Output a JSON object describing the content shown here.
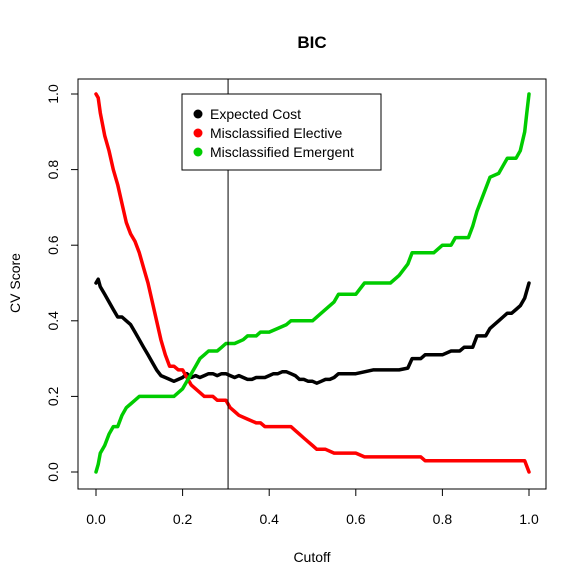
{
  "chart_data": {
    "type": "line",
    "title": "BIC",
    "xlabel": "Cutoff",
    "ylabel": "CV Score",
    "xlim": [
      0,
      1
    ],
    "ylim": [
      0,
      1
    ],
    "x_ticks": [
      "0.0",
      "0.2",
      "0.4",
      "0.6",
      "0.8",
      "1.0"
    ],
    "y_ticks": [
      "0.0",
      "0.2",
      "0.4",
      "0.6",
      "0.8",
      "1.0"
    ],
    "grid": false,
    "legend_position": "top-center",
    "vline": 0.305,
    "series": [
      {
        "name": "Expected Cost",
        "color": "#000000",
        "points": [
          [
            0.0,
            0.5
          ],
          [
            0.005,
            0.51
          ],
          [
            0.01,
            0.49
          ],
          [
            0.02,
            0.47
          ],
          [
            0.03,
            0.45
          ],
          [
            0.04,
            0.43
          ],
          [
            0.05,
            0.41
          ],
          [
            0.06,
            0.41
          ],
          [
            0.07,
            0.4
          ],
          [
            0.08,
            0.39
          ],
          [
            0.09,
            0.37
          ],
          [
            0.1,
            0.35
          ],
          [
            0.11,
            0.33
          ],
          [
            0.12,
            0.31
          ],
          [
            0.13,
            0.29
          ],
          [
            0.14,
            0.27
          ],
          [
            0.15,
            0.255
          ],
          [
            0.16,
            0.25
          ],
          [
            0.17,
            0.245
          ],
          [
            0.18,
            0.24
          ],
          [
            0.19,
            0.245
          ],
          [
            0.2,
            0.25
          ],
          [
            0.21,
            0.26
          ],
          [
            0.22,
            0.25
          ],
          [
            0.23,
            0.255
          ],
          [
            0.24,
            0.25
          ],
          [
            0.25,
            0.255
          ],
          [
            0.26,
            0.26
          ],
          [
            0.27,
            0.26
          ],
          [
            0.28,
            0.255
          ],
          [
            0.29,
            0.26
          ],
          [
            0.3,
            0.26
          ],
          [
            0.31,
            0.255
          ],
          [
            0.32,
            0.25
          ],
          [
            0.33,
            0.255
          ],
          [
            0.34,
            0.25
          ],
          [
            0.35,
            0.245
          ],
          [
            0.36,
            0.245
          ],
          [
            0.37,
            0.25
          ],
          [
            0.38,
            0.25
          ],
          [
            0.39,
            0.25
          ],
          [
            0.4,
            0.255
          ],
          [
            0.41,
            0.26
          ],
          [
            0.42,
            0.26
          ],
          [
            0.43,
            0.265
          ],
          [
            0.44,
            0.265
          ],
          [
            0.45,
            0.26
          ],
          [
            0.46,
            0.255
          ],
          [
            0.47,
            0.245
          ],
          [
            0.48,
            0.245
          ],
          [
            0.49,
            0.24
          ],
          [
            0.5,
            0.24
          ],
          [
            0.51,
            0.235
          ],
          [
            0.52,
            0.24
          ],
          [
            0.53,
            0.245
          ],
          [
            0.54,
            0.245
          ],
          [
            0.55,
            0.25
          ],
          [
            0.56,
            0.26
          ],
          [
            0.57,
            0.26
          ],
          [
            0.58,
            0.26
          ],
          [
            0.6,
            0.26
          ],
          [
            0.62,
            0.265
          ],
          [
            0.64,
            0.27
          ],
          [
            0.66,
            0.27
          ],
          [
            0.68,
            0.27
          ],
          [
            0.7,
            0.27
          ],
          [
            0.72,
            0.275
          ],
          [
            0.73,
            0.3
          ],
          [
            0.75,
            0.3
          ],
          [
            0.76,
            0.31
          ],
          [
            0.78,
            0.31
          ],
          [
            0.8,
            0.31
          ],
          [
            0.82,
            0.32
          ],
          [
            0.84,
            0.32
          ],
          [
            0.85,
            0.33
          ],
          [
            0.87,
            0.33
          ],
          [
            0.88,
            0.36
          ],
          [
            0.9,
            0.36
          ],
          [
            0.91,
            0.38
          ],
          [
            0.92,
            0.39
          ],
          [
            0.93,
            0.4
          ],
          [
            0.94,
            0.41
          ],
          [
            0.95,
            0.42
          ],
          [
            0.96,
            0.42
          ],
          [
            0.97,
            0.43
          ],
          [
            0.98,
            0.44
          ],
          [
            0.99,
            0.46
          ],
          [
            1.0,
            0.5
          ]
        ]
      },
      {
        "name": "Misclassified Elective",
        "color": "#ff0000",
        "points": [
          [
            0.0,
            1.0
          ],
          [
            0.005,
            0.99
          ],
          [
            0.01,
            0.95
          ],
          [
            0.015,
            0.92
          ],
          [
            0.02,
            0.89
          ],
          [
            0.03,
            0.85
          ],
          [
            0.04,
            0.8
          ],
          [
            0.05,
            0.76
          ],
          [
            0.06,
            0.71
          ],
          [
            0.07,
            0.66
          ],
          [
            0.08,
            0.63
          ],
          [
            0.09,
            0.61
          ],
          [
            0.1,
            0.58
          ],
          [
            0.11,
            0.54
          ],
          [
            0.12,
            0.5
          ],
          [
            0.13,
            0.45
          ],
          [
            0.14,
            0.4
          ],
          [
            0.15,
            0.35
          ],
          [
            0.16,
            0.31
          ],
          [
            0.17,
            0.28
          ],
          [
            0.18,
            0.28
          ],
          [
            0.19,
            0.27
          ],
          [
            0.2,
            0.27
          ],
          [
            0.21,
            0.25
          ],
          [
            0.22,
            0.23
          ],
          [
            0.23,
            0.22
          ],
          [
            0.24,
            0.21
          ],
          [
            0.25,
            0.2
          ],
          [
            0.26,
            0.2
          ],
          [
            0.27,
            0.2
          ],
          [
            0.28,
            0.19
          ],
          [
            0.29,
            0.19
          ],
          [
            0.3,
            0.19
          ],
          [
            0.31,
            0.17
          ],
          [
            0.32,
            0.16
          ],
          [
            0.33,
            0.15
          ],
          [
            0.35,
            0.14
          ],
          [
            0.37,
            0.13
          ],
          [
            0.38,
            0.13
          ],
          [
            0.39,
            0.12
          ],
          [
            0.42,
            0.12
          ],
          [
            0.45,
            0.12
          ],
          [
            0.46,
            0.11
          ],
          [
            0.47,
            0.1
          ],
          [
            0.48,
            0.09
          ],
          [
            0.49,
            0.08
          ],
          [
            0.5,
            0.07
          ],
          [
            0.51,
            0.06
          ],
          [
            0.53,
            0.06
          ],
          [
            0.55,
            0.05
          ],
          [
            0.58,
            0.05
          ],
          [
            0.6,
            0.05
          ],
          [
            0.62,
            0.04
          ],
          [
            0.65,
            0.04
          ],
          [
            0.7,
            0.04
          ],
          [
            0.75,
            0.04
          ],
          [
            0.76,
            0.03
          ],
          [
            0.8,
            0.03
          ],
          [
            0.85,
            0.03
          ],
          [
            0.9,
            0.03
          ],
          [
            0.95,
            0.03
          ],
          [
            0.99,
            0.03
          ],
          [
            1.0,
            0.0
          ]
        ]
      },
      {
        "name": "Misclassified Emergent",
        "color": "#00cc00",
        "points": [
          [
            0.0,
            0.0
          ],
          [
            0.005,
            0.02
          ],
          [
            0.01,
            0.05
          ],
          [
            0.02,
            0.07
          ],
          [
            0.03,
            0.1
          ],
          [
            0.04,
            0.12
          ],
          [
            0.05,
            0.12
          ],
          [
            0.06,
            0.15
          ],
          [
            0.07,
            0.17
          ],
          [
            0.08,
            0.18
          ],
          [
            0.09,
            0.19
          ],
          [
            0.1,
            0.2
          ],
          [
            0.12,
            0.2
          ],
          [
            0.14,
            0.2
          ],
          [
            0.16,
            0.2
          ],
          [
            0.18,
            0.2
          ],
          [
            0.19,
            0.21
          ],
          [
            0.2,
            0.22
          ],
          [
            0.21,
            0.24
          ],
          [
            0.22,
            0.26
          ],
          [
            0.23,
            0.28
          ],
          [
            0.24,
            0.3
          ],
          [
            0.25,
            0.31
          ],
          [
            0.26,
            0.32
          ],
          [
            0.28,
            0.32
          ],
          [
            0.29,
            0.33
          ],
          [
            0.3,
            0.34
          ],
          [
            0.32,
            0.34
          ],
          [
            0.34,
            0.35
          ],
          [
            0.35,
            0.36
          ],
          [
            0.37,
            0.36
          ],
          [
            0.38,
            0.37
          ],
          [
            0.4,
            0.37
          ],
          [
            0.42,
            0.38
          ],
          [
            0.44,
            0.39
          ],
          [
            0.45,
            0.4
          ],
          [
            0.5,
            0.4
          ],
          [
            0.52,
            0.42
          ],
          [
            0.55,
            0.45
          ],
          [
            0.56,
            0.47
          ],
          [
            0.6,
            0.47
          ],
          [
            0.62,
            0.5
          ],
          [
            0.68,
            0.5
          ],
          [
            0.7,
            0.52
          ],
          [
            0.72,
            0.55
          ],
          [
            0.73,
            0.58
          ],
          [
            0.78,
            0.58
          ],
          [
            0.8,
            0.6
          ],
          [
            0.82,
            0.6
          ],
          [
            0.83,
            0.62
          ],
          [
            0.86,
            0.62
          ],
          [
            0.87,
            0.65
          ],
          [
            0.88,
            0.69
          ],
          [
            0.89,
            0.72
          ],
          [
            0.9,
            0.75
          ],
          [
            0.91,
            0.78
          ],
          [
            0.93,
            0.79
          ],
          [
            0.94,
            0.81
          ],
          [
            0.95,
            0.83
          ],
          [
            0.97,
            0.83
          ],
          [
            0.98,
            0.85
          ],
          [
            0.99,
            0.9
          ],
          [
            0.995,
            0.95
          ],
          [
            1.0,
            1.0
          ]
        ]
      }
    ]
  }
}
